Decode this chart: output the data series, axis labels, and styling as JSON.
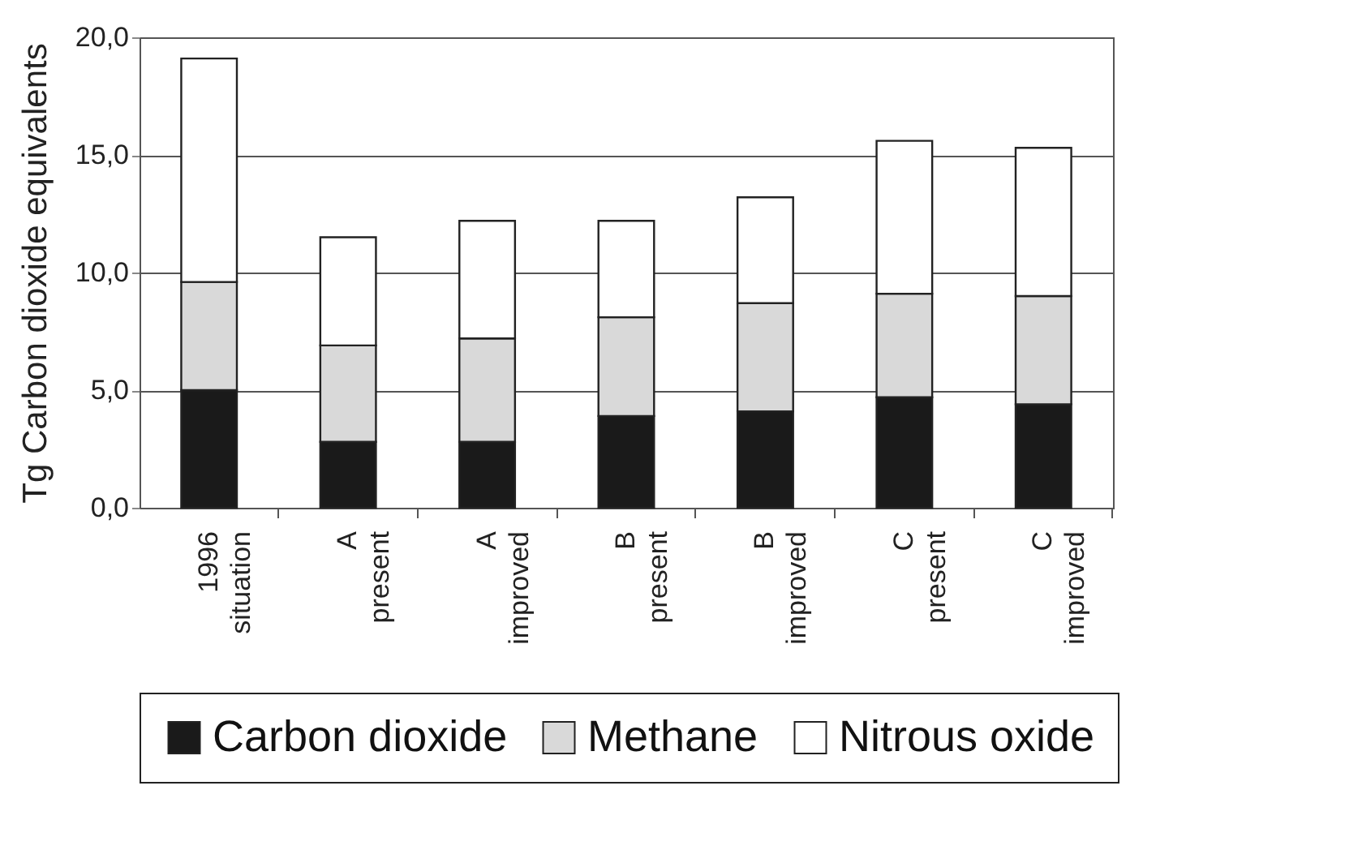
{
  "chart_data": {
    "type": "bar",
    "stacked": true,
    "ylabel": "Tg Carbon dioxide equivalents",
    "categories": [
      "1996 situation",
      "A present",
      "A improved",
      "B present",
      "B improved",
      "C present",
      "C improved"
    ],
    "series": [
      {
        "name": "Carbon dioxide",
        "color": "#1a1a1a",
        "values": [
          5.0,
          2.8,
          2.8,
          3.9,
          4.1,
          4.7,
          4.4
        ]
      },
      {
        "name": "Methane",
        "color": "#d9d9d9",
        "values": [
          4.6,
          4.1,
          4.4,
          4.2,
          4.6,
          4.4,
          4.6
        ]
      },
      {
        "name": "Nitrous oxide",
        "color": "#ffffff",
        "values": [
          9.5,
          4.6,
          5.0,
          4.1,
          4.5,
          6.5,
          6.3
        ]
      }
    ],
    "ylim": [
      0,
      20
    ],
    "yticks": [
      {
        "value": 0,
        "label": "0,0"
      },
      {
        "value": 5,
        "label": "5,0"
      },
      {
        "value": 10,
        "label": "10,0"
      },
      {
        "value": 15,
        "label": "15,0"
      },
      {
        "value": 20,
        "label": "20,0"
      }
    ],
    "grid": "y",
    "legend": "bottom"
  }
}
